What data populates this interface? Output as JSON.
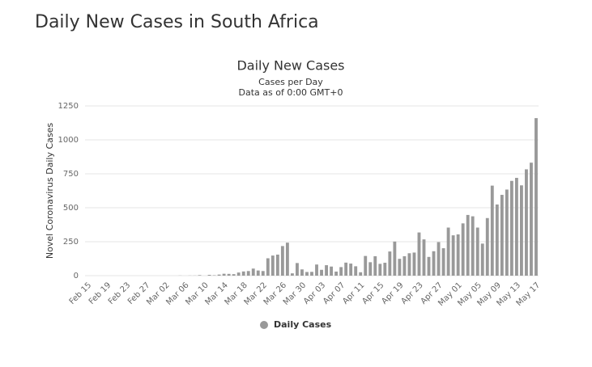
{
  "page_title": "Daily New Cases in South Africa",
  "chart_data": {
    "type": "bar",
    "title": "Daily New Cases",
    "subtitle": [
      "Cases per Day",
      "Data as of 0:00 GMT+0"
    ],
    "y_label": "Novel Coronavirus Daily Cases",
    "categories": [
      "Feb 15",
      null,
      null,
      null,
      "Feb 19",
      null,
      null,
      null,
      "Feb 23",
      null,
      null,
      null,
      "Feb 27",
      null,
      null,
      null,
      "Mar 02",
      null,
      null,
      null,
      "Mar 06",
      null,
      null,
      null,
      "Mar 10",
      null,
      null,
      null,
      "Mar 14",
      null,
      null,
      null,
      "Mar 18",
      null,
      null,
      null,
      "Mar 22",
      null,
      null,
      null,
      "Mar 26",
      null,
      null,
      null,
      "Mar 30",
      null,
      null,
      null,
      "Apr 03",
      null,
      null,
      null,
      "Apr 07",
      null,
      null,
      null,
      "Apr 11",
      null,
      null,
      null,
      "Apr 15",
      null,
      null,
      null,
      "Apr 19",
      null,
      null,
      null,
      "Apr 23",
      null,
      null,
      null,
      "Apr 27",
      null,
      null,
      null,
      "May 01",
      null,
      null,
      null,
      "May 05",
      null,
      null,
      null,
      "May 09",
      null,
      null,
      null,
      "May 13",
      null,
      null,
      null,
      "May 17"
    ],
    "series": [
      {
        "name": "Daily Cases",
        "color": "#999999",
        "values": [
          0,
          0,
          0,
          0,
          0,
          0,
          0,
          0,
          0,
          0,
          0,
          0,
          0,
          0,
          0,
          0,
          0,
          0,
          0,
          1,
          0,
          1,
          1,
          4,
          0,
          6,
          3,
          8,
          14,
          13,
          11,
          23,
          31,
          34,
          52,
          38,
          34,
          128,
          148,
          155,
          218,
          243,
          17,
          93,
          46,
          27,
          28,
          82,
          43,
          77,
          67,
          30,
          63,
          96,
          89,
          69,
          25,
          145,
          99,
          143,
          87,
          95,
          178,
          251,
          124,
          143,
          165,
          170,
          318,
          267,
          138,
          180,
          247,
          202,
          354,
          297,
          304,
          385,
          447,
          437,
          354,
          236,
          424,
          663,
          524,
          595,
          634,
          698,
          720,
          665,
          783,
          832,
          1160
        ]
      }
    ],
    "ylim": [
      0,
      1250
    ],
    "yticks": [
      0,
      250,
      500,
      750,
      1000,
      1250
    ],
    "grid": true,
    "legend": "bottom"
  }
}
